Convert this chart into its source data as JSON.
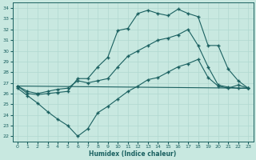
{
  "xlabel": "Humidex (Indice chaleur)",
  "bg_color": "#c8e8e0",
  "grid_color": "#b0d8d0",
  "line_color": "#1a6060",
  "xlim": [
    -0.5,
    23.5
  ],
  "ylim": [
    21.5,
    34.5
  ],
  "yticks": [
    22,
    23,
    24,
    25,
    26,
    27,
    28,
    29,
    30,
    31,
    32,
    33,
    34
  ],
  "xticks": [
    0,
    1,
    2,
    3,
    4,
    5,
    6,
    7,
    8,
    9,
    10,
    11,
    12,
    13,
    14,
    15,
    16,
    17,
    18,
    19,
    20,
    21,
    22,
    23
  ],
  "line1_x": [
    0,
    1,
    2,
    3,
    4,
    5,
    6,
    7,
    8,
    9,
    10,
    11,
    12,
    13,
    14,
    15,
    16,
    17,
    18,
    19,
    20,
    21,
    22,
    23
  ],
  "line1_y": [
    26.7,
    26.0,
    25.9,
    26.0,
    26.1,
    26.2,
    27.4,
    27.4,
    28.5,
    29.4,
    31.9,
    32.1,
    33.5,
    33.8,
    33.5,
    33.3,
    33.9,
    33.5,
    33.2,
    30.5,
    30.5,
    28.3,
    27.2,
    26.5
  ],
  "line2_x": [
    0,
    1,
    2,
    3,
    4,
    5,
    6,
    7,
    8,
    9,
    10,
    11,
    12,
    13,
    14,
    15,
    16,
    17,
    18,
    19,
    20,
    21,
    22,
    23
  ],
  "line2_y": [
    26.7,
    26.2,
    26.0,
    26.2,
    26.4,
    26.5,
    27.2,
    27.0,
    27.2,
    27.4,
    28.5,
    29.5,
    30.0,
    30.5,
    31.0,
    31.2,
    31.5,
    32.0,
    30.5,
    28.5,
    26.8,
    26.6,
    26.5,
    26.5
  ],
  "line3_x": [
    0,
    23
  ],
  "line3_y": [
    26.7,
    26.5
  ],
  "line4_x": [
    0,
    1,
    2,
    3,
    4,
    5,
    6,
    7,
    8,
    9,
    10,
    11,
    12,
    13,
    14,
    15,
    16,
    17,
    18,
    19,
    20,
    21,
    22,
    23
  ],
  "line4_y": [
    26.5,
    25.8,
    25.1,
    24.3,
    23.6,
    23.0,
    22.0,
    22.7,
    24.2,
    24.8,
    25.5,
    26.2,
    26.7,
    27.3,
    27.5,
    28.0,
    28.5,
    28.8,
    29.2,
    27.5,
    26.7,
    26.5,
    26.8,
    26.5
  ]
}
